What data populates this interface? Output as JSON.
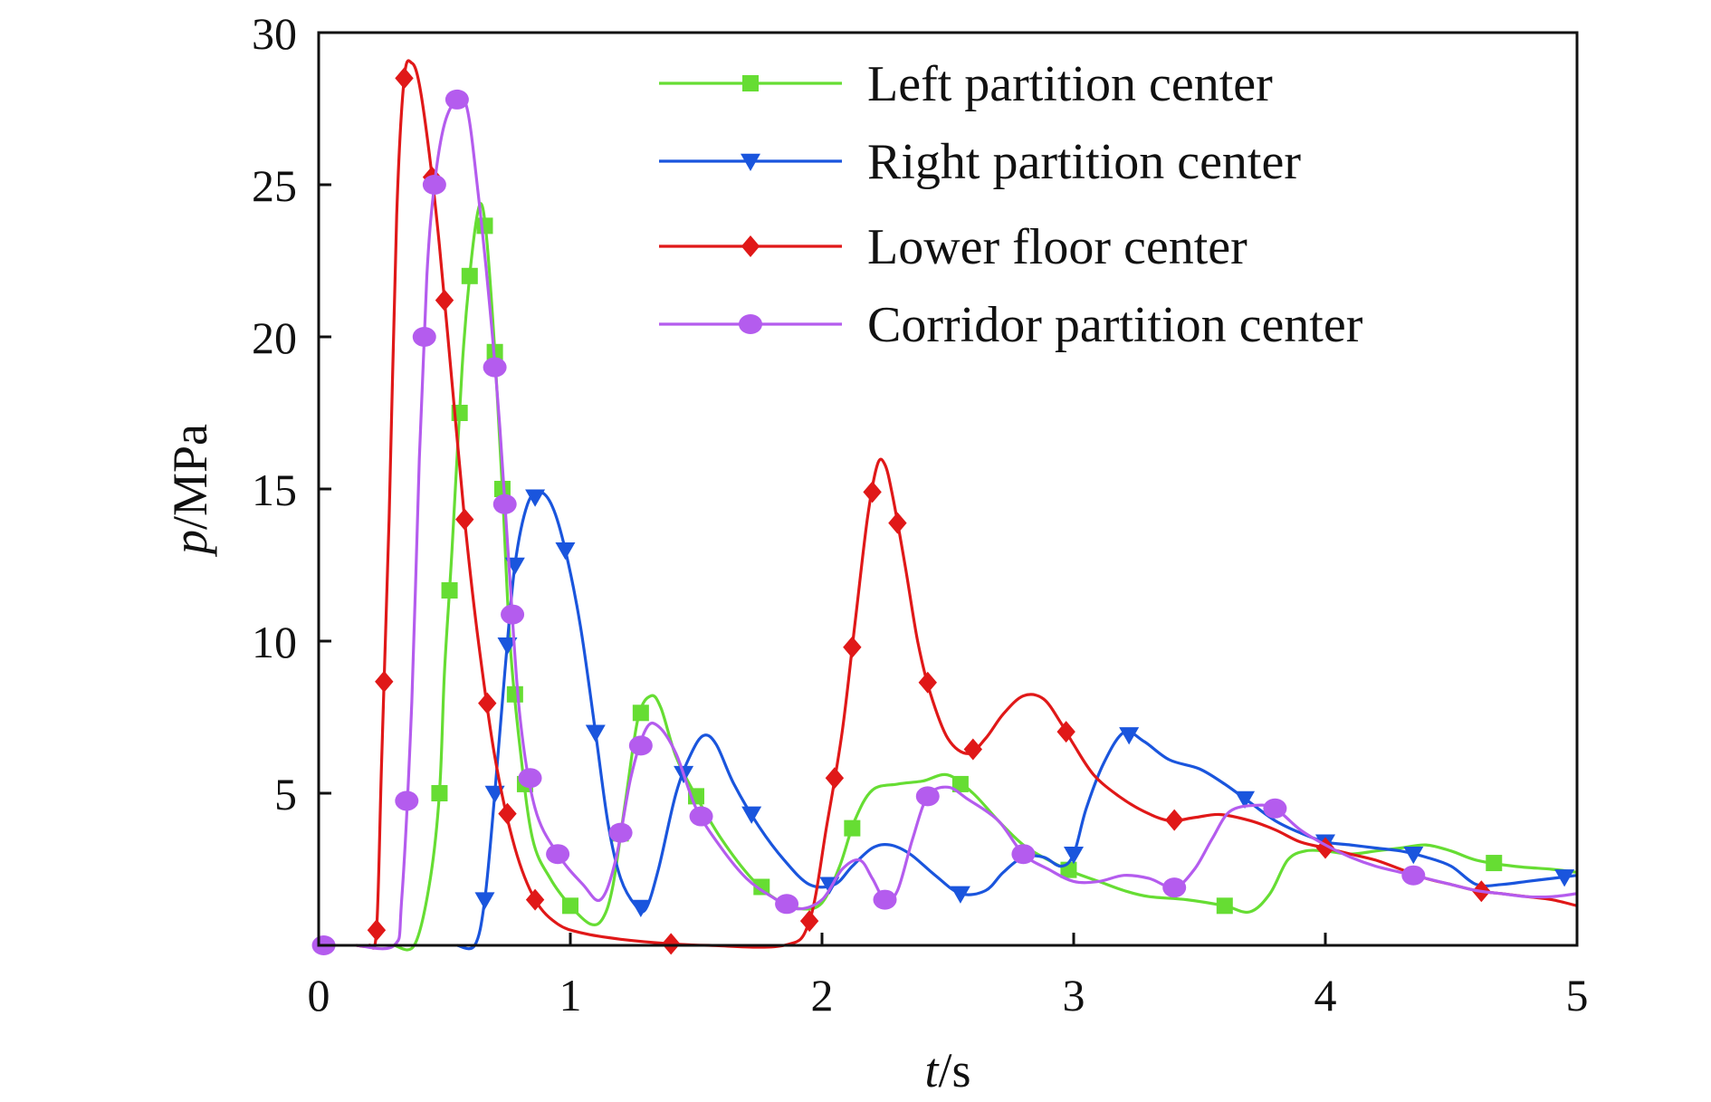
{
  "chart_data": {
    "type": "line",
    "title": "",
    "xlabel": {
      "italic": "t",
      "rest": "/s"
    },
    "ylabel": {
      "italic": "p",
      "rest": "/MPa"
    },
    "xlim": [
      0,
      5
    ],
    "ylim": [
      0,
      30
    ],
    "x_ticks": [
      0,
      1,
      2,
      3,
      4,
      5
    ],
    "y_ticks": [
      5,
      10,
      15,
      20,
      25,
      30
    ],
    "x_tick_labels": [
      "0",
      "1",
      "2",
      "3",
      "4",
      "5"
    ],
    "y_tick_labels": [
      "5",
      "10",
      "15",
      "20",
      "25",
      "30"
    ],
    "grid": false,
    "legend_position": "top-right",
    "series": [
      {
        "name": "Left partition center",
        "color": "#66dd33",
        "marker": "square",
        "points": [
          [
            0.3,
            0
          ],
          [
            0.38,
            0
          ],
          [
            0.44,
            2
          ],
          [
            0.48,
            5
          ],
          [
            0.5,
            9
          ],
          [
            0.53,
            13
          ],
          [
            0.57,
            19
          ],
          [
            0.6,
            22
          ],
          [
            0.63,
            24
          ],
          [
            0.65,
            24.3
          ],
          [
            0.67,
            23
          ],
          [
            0.7,
            19.5
          ],
          [
            0.73,
            15
          ],
          [
            0.76,
            10
          ],
          [
            0.8,
            6.5
          ],
          [
            0.85,
            3.5
          ],
          [
            0.92,
            2.2
          ],
          [
            1.0,
            1.3
          ],
          [
            1.08,
            0.7
          ],
          [
            1.13,
            0.9
          ],
          [
            1.17,
            2
          ],
          [
            1.22,
            4.8
          ],
          [
            1.27,
            7.5
          ],
          [
            1.32,
            8.2
          ],
          [
            1.36,
            7.8
          ],
          [
            1.42,
            6.2
          ],
          [
            1.5,
            4.9
          ],
          [
            1.6,
            3.5
          ],
          [
            1.72,
            2.2
          ],
          [
            1.82,
            1.5
          ],
          [
            1.92,
            1.2
          ],
          [
            2.0,
            1.4
          ],
          [
            2.07,
            2.6
          ],
          [
            2.13,
            4.1
          ],
          [
            2.2,
            5.1
          ],
          [
            2.3,
            5.3
          ],
          [
            2.4,
            5.4
          ],
          [
            2.5,
            5.6
          ],
          [
            2.6,
            5
          ],
          [
            2.7,
            4.1
          ],
          [
            2.8,
            3.3
          ],
          [
            2.9,
            2.8
          ],
          [
            3.0,
            2.4
          ],
          [
            3.1,
            2.1
          ],
          [
            3.2,
            1.8
          ],
          [
            3.3,
            1.6
          ],
          [
            3.45,
            1.5
          ],
          [
            3.6,
            1.3
          ],
          [
            3.7,
            1.1
          ],
          [
            3.78,
            1.7
          ],
          [
            3.85,
            2.8
          ],
          [
            3.92,
            3.1
          ],
          [
            4.0,
            3.1
          ],
          [
            4.1,
            3
          ],
          [
            4.2,
            3.1
          ],
          [
            4.3,
            3.2
          ],
          [
            4.4,
            3.3
          ],
          [
            4.5,
            3.1
          ],
          [
            4.6,
            2.8
          ],
          [
            4.75,
            2.6
          ],
          [
            4.9,
            2.5
          ],
          [
            5.0,
            2.4
          ]
        ],
        "marker_x": [
          0.48,
          0.52,
          0.56,
          0.6,
          0.66,
          0.7,
          0.73,
          0.78,
          0.82,
          1.0,
          1.2,
          1.28,
          1.5,
          1.76,
          2.12,
          2.55,
          2.98,
          3.6,
          4.67
        ]
      },
      {
        "name": "Right partition center",
        "color": "#1a55dd",
        "marker": "triangle-down",
        "points": [
          [
            0.55,
            0
          ],
          [
            0.62,
            0
          ],
          [
            0.66,
            1.5
          ],
          [
            0.7,
            5
          ],
          [
            0.74,
            9
          ],
          [
            0.78,
            12.5
          ],
          [
            0.83,
            14.5
          ],
          [
            0.88,
            14.9
          ],
          [
            0.93,
            14.4
          ],
          [
            0.98,
            13
          ],
          [
            1.04,
            10.5
          ],
          [
            1.1,
            7
          ],
          [
            1.15,
            4
          ],
          [
            1.2,
            2.2
          ],
          [
            1.26,
            1.3
          ],
          [
            1.3,
            1.2
          ],
          [
            1.35,
            2.5
          ],
          [
            1.42,
            5
          ],
          [
            1.48,
            6.3
          ],
          [
            1.53,
            6.9
          ],
          [
            1.58,
            6.6
          ],
          [
            1.65,
            5.3
          ],
          [
            1.75,
            3.9
          ],
          [
            1.85,
            2.8
          ],
          [
            1.95,
            2
          ],
          [
            2.05,
            2
          ],
          [
            2.12,
            2.6
          ],
          [
            2.2,
            3.2
          ],
          [
            2.27,
            3.3
          ],
          [
            2.35,
            3
          ],
          [
            2.45,
            2.3
          ],
          [
            2.55,
            1.7
          ],
          [
            2.65,
            1.8
          ],
          [
            2.72,
            2.4
          ],
          [
            2.8,
            2.9
          ],
          [
            2.88,
            2.9
          ],
          [
            2.95,
            2.6
          ],
          [
            3.0,
            3
          ],
          [
            3.05,
            4.5
          ],
          [
            3.12,
            6
          ],
          [
            3.2,
            7
          ],
          [
            3.28,
            6.7
          ],
          [
            3.38,
            6.1
          ],
          [
            3.5,
            5.8
          ],
          [
            3.6,
            5.3
          ],
          [
            3.7,
            4.7
          ],
          [
            3.8,
            4.1
          ],
          [
            3.9,
            3.7
          ],
          [
            4.0,
            3.4
          ],
          [
            4.1,
            3.3
          ],
          [
            4.2,
            3.2
          ],
          [
            4.3,
            3.1
          ],
          [
            4.4,
            2.9
          ],
          [
            4.5,
            2.6
          ],
          [
            4.6,
            2
          ],
          [
            4.7,
            2
          ],
          [
            4.8,
            2.1
          ],
          [
            4.9,
            2.2
          ],
          [
            5.0,
            2.3
          ]
        ],
        "marker_x": [
          0.66,
          0.7,
          0.75,
          0.78,
          0.86,
          0.98,
          1.1,
          1.28,
          1.45,
          1.72,
          2.03,
          2.55,
          3.0,
          3.22,
          3.68,
          4.0,
          4.35,
          4.95
        ]
      },
      {
        "name": "Lower floor center",
        "color": "#e01818",
        "marker": "diamond",
        "points": [
          [
            0.15,
            0
          ],
          [
            0.2,
            0
          ],
          [
            0.23,
            0.5
          ],
          [
            0.25,
            6
          ],
          [
            0.28,
            14
          ],
          [
            0.31,
            24
          ],
          [
            0.34,
            28.5
          ],
          [
            0.37,
            29
          ],
          [
            0.4,
            28.3
          ],
          [
            0.44,
            26
          ],
          [
            0.48,
            23
          ],
          [
            0.53,
            18.5
          ],
          [
            0.58,
            14
          ],
          [
            0.63,
            10.3
          ],
          [
            0.7,
            6.2
          ],
          [
            0.78,
            3.2
          ],
          [
            0.86,
            1.5
          ],
          [
            0.95,
            0.7
          ],
          [
            1.05,
            0.4
          ],
          [
            1.2,
            0.2
          ],
          [
            1.4,
            0.05
          ],
          [
            1.55,
            0
          ],
          [
            1.85,
            0
          ],
          [
            1.95,
            0.8
          ],
          [
            2.02,
            4
          ],
          [
            2.08,
            7
          ],
          [
            2.13,
            10.5
          ],
          [
            2.18,
            14
          ],
          [
            2.22,
            15.8
          ],
          [
            2.25,
            15.8
          ],
          [
            2.28,
            14.8
          ],
          [
            2.33,
            12.5
          ],
          [
            2.38,
            10
          ],
          [
            2.43,
            8.3
          ],
          [
            2.5,
            6.8
          ],
          [
            2.58,
            6.3
          ],
          [
            2.65,
            6.8
          ],
          [
            2.72,
            7.6
          ],
          [
            2.8,
            8.2
          ],
          [
            2.88,
            8.1
          ],
          [
            2.95,
            7.3
          ],
          [
            3.0,
            6.6
          ],
          [
            3.08,
            5.6
          ],
          [
            3.18,
            4.9
          ],
          [
            3.28,
            4.4
          ],
          [
            3.38,
            4.1
          ],
          [
            3.48,
            4.2
          ],
          [
            3.58,
            4.3
          ],
          [
            3.7,
            4.1
          ],
          [
            3.8,
            3.8
          ],
          [
            3.9,
            3.4
          ],
          [
            4.0,
            3.2
          ],
          [
            4.1,
            3
          ],
          [
            4.2,
            2.8
          ],
          [
            4.3,
            2.5
          ],
          [
            4.4,
            2.2
          ],
          [
            4.5,
            2
          ],
          [
            4.6,
            1.8
          ],
          [
            4.7,
            1.7
          ],
          [
            4.8,
            1.6
          ],
          [
            4.9,
            1.5
          ],
          [
            5.0,
            1.3
          ]
        ],
        "marker_x": [
          0.23,
          0.26,
          0.34,
          0.45,
          0.5,
          0.58,
          0.67,
          0.75,
          0.86,
          1.4,
          1.95,
          2.05,
          2.12,
          2.2,
          2.3,
          2.42,
          2.6,
          2.97,
          3.4,
          4.0,
          4.62
        ]
      },
      {
        "name": "Corridor partition center",
        "color": "#b45cee",
        "marker": "circle",
        "points": [
          [
            0.15,
            0
          ],
          [
            0.3,
            0
          ],
          [
            0.33,
            1.5
          ],
          [
            0.37,
            8
          ],
          [
            0.4,
            16
          ],
          [
            0.43,
            22
          ],
          [
            0.46,
            25
          ],
          [
            0.5,
            27
          ],
          [
            0.55,
            27.8
          ],
          [
            0.59,
            27.5
          ],
          [
            0.63,
            25
          ],
          [
            0.68,
            21
          ],
          [
            0.72,
            17
          ],
          [
            0.76,
            12
          ],
          [
            0.8,
            7.5
          ],
          [
            0.86,
            4.5
          ],
          [
            0.95,
            3
          ],
          [
            1.05,
            2
          ],
          [
            1.12,
            1.5
          ],
          [
            1.18,
            2.8
          ],
          [
            1.24,
            5.5
          ],
          [
            1.3,
            7.1
          ],
          [
            1.35,
            7.2
          ],
          [
            1.42,
            6.3
          ],
          [
            1.5,
            4.5
          ],
          [
            1.6,
            3.2
          ],
          [
            1.7,
            2.2
          ],
          [
            1.8,
            1.6
          ],
          [
            1.9,
            1.2
          ],
          [
            2.0,
            1.5
          ],
          [
            2.08,
            2.5
          ],
          [
            2.15,
            2.8
          ],
          [
            2.2,
            2.2
          ],
          [
            2.25,
            1.5
          ],
          [
            2.3,
            1.8
          ],
          [
            2.36,
            3.5
          ],
          [
            2.42,
            4.9
          ],
          [
            2.5,
            5.2
          ],
          [
            2.58,
            4.8
          ],
          [
            2.7,
            4.1
          ],
          [
            2.8,
            3
          ],
          [
            2.9,
            2.5
          ],
          [
            3.0,
            2.1
          ],
          [
            3.1,
            2.1
          ],
          [
            3.2,
            2.3
          ],
          [
            3.3,
            2.2
          ],
          [
            3.4,
            1.9
          ],
          [
            3.48,
            2.5
          ],
          [
            3.55,
            3.5
          ],
          [
            3.62,
            4.4
          ],
          [
            3.72,
            4.6
          ],
          [
            3.8,
            4.5
          ],
          [
            3.9,
            3.8
          ],
          [
            4.0,
            3.3
          ],
          [
            4.1,
            2.9
          ],
          [
            4.2,
            2.6
          ],
          [
            4.3,
            2.4
          ],
          [
            4.4,
            2.2
          ],
          [
            4.5,
            2
          ],
          [
            4.6,
            1.8
          ],
          [
            4.7,
            1.7
          ],
          [
            4.8,
            1.6
          ],
          [
            4.9,
            1.6
          ],
          [
            5.0,
            1.7
          ]
        ],
        "marker_x": [
          0.02,
          0.35,
          0.42,
          0.46,
          0.55,
          0.7,
          0.74,
          0.77,
          0.84,
          0.95,
          1.2,
          1.28,
          1.52,
          1.86,
          2.25,
          2.42,
          2.8,
          3.4,
          3.8,
          4.35
        ]
      }
    ]
  }
}
